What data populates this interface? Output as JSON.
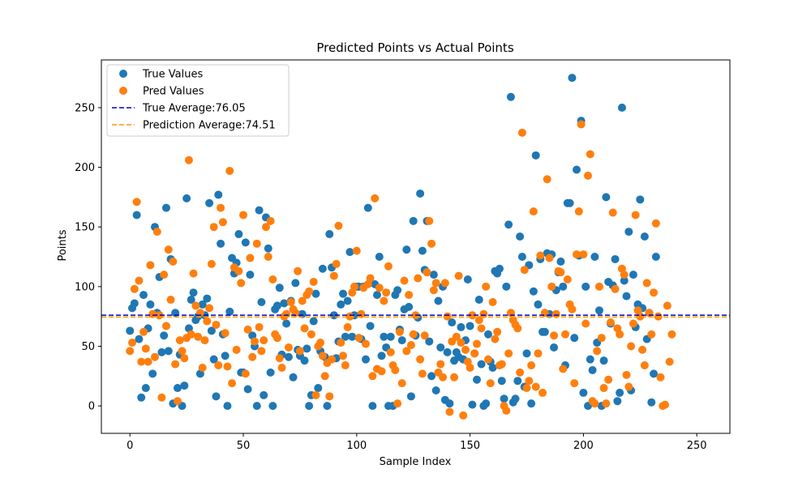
{
  "chart_data": {
    "type": "scatter",
    "title": "Predicted Points vs Actual Points",
    "xlabel": "Sample Index",
    "ylabel": "Points",
    "xlim": [
      -12.6,
      264.6
    ],
    "ylim": [
      -23,
      290
    ],
    "xticks": [
      0,
      50,
      100,
      150,
      200,
      250
    ],
    "yticks": [
      0,
      50,
      100,
      150,
      200,
      250
    ],
    "grid": false,
    "legend_position": "top-left",
    "series": [
      {
        "name": "True Values",
        "color": "#1f77b4",
        "marker": "circle",
        "y": [
          63,
          82,
          86,
          160,
          56,
          7,
          93,
          15,
          65,
          85,
          27,
          150,
          78,
          108,
          45,
          59,
          166,
          46,
          123,
          2,
          78,
          15,
          43,
          0,
          17,
          174,
          65,
          89,
          95,
          72,
          75,
          27,
          85,
          76,
          90,
          170,
          63,
          39,
          8,
          177,
          136,
          60,
          42,
          0,
          79,
          124,
          111,
          120,
          144,
          28,
          28,
          137,
          14,
          110,
          59,
          50,
          0,
          164,
          87,
          9,
          158,
          132,
          28,
          0,
          81,
          84,
          99,
          43,
          86,
          69,
          41,
          88,
          24,
          103,
          47,
          42,
          77,
          38,
          48,
          0,
          9,
          71,
          94,
          15,
          46,
          115,
          41,
          0,
          144,
          116,
          76,
          40,
          54,
          85,
          94,
          58,
          88,
          129,
          58,
          76,
          100,
          100,
          56,
          100,
          39,
          166,
          67,
          0,
          102,
          93,
          125,
          42,
          58,
          49,
          0,
          58,
          0,
          93,
          97,
          64,
          55,
          81,
          131,
          83,
          8,
          155,
          59,
          74,
          178,
          130,
          114,
          155,
          54,
          25,
          110,
          13,
          88,
          49,
          100,
          5,
          45,
          2,
          70,
          38,
          45,
          41,
          66,
          39,
          55,
          106,
          67,
          1,
          44,
          22,
          89,
          35,
          0,
          2,
          60,
          37,
          32,
          113,
          111,
          115,
          21,
          6,
          100,
          152,
          259,
          3,
          6,
          21,
          142,
          125,
          16,
          44,
          118,
          2,
          96,
          210,
          85,
          123,
          62,
          62,
          128,
          77,
          127,
          49,
          97,
          112,
          121,
          100,
          34,
          170,
          170,
          275,
          57,
          198,
          126,
          239,
          11,
          100,
          0,
          39,
          30,
          125,
          53,
          80,
          0,
          38,
          175,
          104,
          69,
          101,
          123,
          4,
          11,
          250,
          105,
          92,
          146,
          13,
          110,
          66,
          85,
          173,
          82,
          142,
          56,
          78,
          3,
          27,
          125
        ]
      },
      {
        "name": "Pred Values",
        "color": "#ff7f0e",
        "marker": "circle",
        "y": [
          46,
          53,
          98,
          171,
          105,
          37,
          62,
          48,
          37,
          118,
          77,
          41,
          146,
          76,
          7,
          110,
          67,
          131,
          89,
          121,
          35,
          4,
          55,
          46,
          40,
          57,
          206,
          60,
          111,
          84,
          58,
          78,
          32,
          55,
          71,
          82,
          119,
          150,
          68,
          34,
          166,
          154,
          61,
          33,
          197,
          19,
          116,
          47,
          113,
          103,
          160,
          27,
          64,
          124,
          41,
          54,
          136,
          66,
          46,
          55,
          150,
          125,
          155,
          106,
          60,
          57,
          40,
          32,
          75,
          77,
          49,
          87,
          81,
          78,
          113,
          46,
          88,
          65,
          93,
          96,
          60,
          104,
          9,
          50,
          53,
          42,
          25,
          36,
          8,
          39,
          109,
          119,
          151,
          53,
          42,
          34,
          66,
          75,
          95,
          100,
          130,
          57,
          77,
          99,
          52,
          102,
          107,
          25,
          174,
          31,
          99,
          29,
          88,
          95,
          117,
          45,
          34,
          30,
          2,
          62,
          19,
          105,
          46,
          93,
          51,
          60,
          76,
          107,
          39,
          27,
          59,
          112,
          155,
          136,
          97,
          103,
          28,
          35,
          24,
          103,
          75,
          -5,
          54,
          24,
          58,
          109,
          53,
          -8,
          47,
          37,
          32,
          76,
          44,
          52,
          72,
          65,
          77,
          100,
          39,
          19,
          87,
          56,
          62,
          34,
          35,
          0,
          -4,
          44,
          78,
          72,
          68,
          65,
          28,
          229,
          114,
          15,
          21,
          34,
          163,
          16,
          44,
          126,
          11,
          78,
          190,
          124,
          100,
          59,
          77,
          113,
          112,
          31,
          60,
          106,
          85,
          81,
          19,
          127,
          163,
          236,
          127,
          69,
          193,
          211,
          4,
          2,
          46,
          100,
          57,
          15,
          2,
          22,
          70,
          162,
          98,
          65,
          60,
          115,
          110,
          26,
          16,
          50,
          69,
          160,
          80,
          75,
          47,
          34,
          103,
          78,
          60,
          95,
          153,
          75,
          24,
          0,
          1,
          84,
          37,
          60
        ]
      }
    ],
    "reference_lines": [
      {
        "name": "True Average:76.05",
        "value": 76.05,
        "color": "#0000cc",
        "style": "dashed"
      },
      {
        "name": "Prediction Average:74.51",
        "value": 74.51,
        "color": "#ff9900",
        "style": "dashed"
      }
    ]
  }
}
